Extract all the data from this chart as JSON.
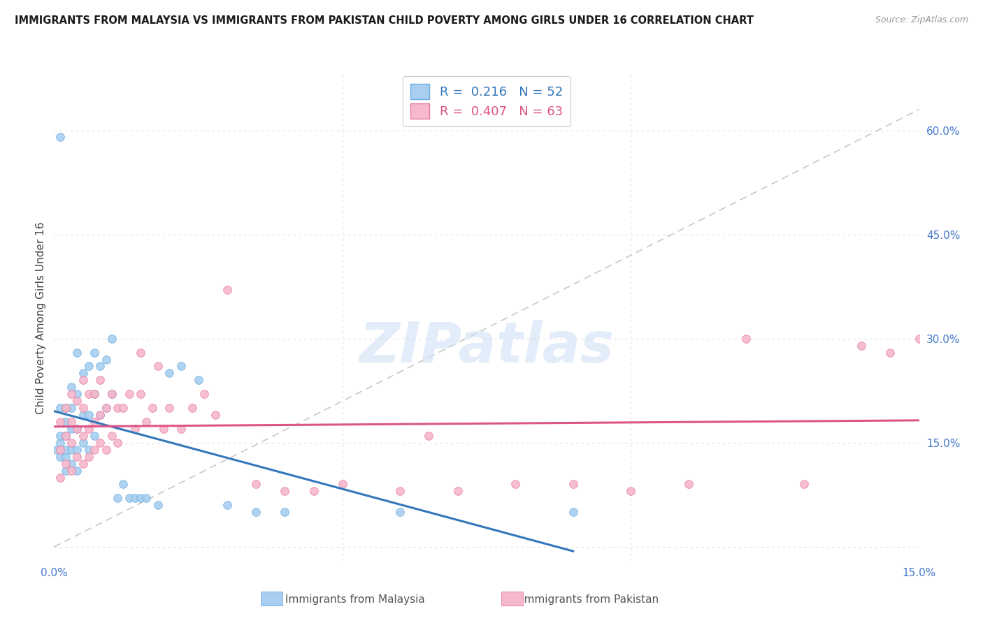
{
  "title": "IMMIGRANTS FROM MALAYSIA VS IMMIGRANTS FROM PAKISTAN CHILD POVERTY AMONG GIRLS UNDER 16 CORRELATION CHART",
  "source": "Source: ZipAtlas.com",
  "ylabel": "Child Poverty Among Girls Under 16",
  "xlim": [
    0.0,
    0.15
  ],
  "ylim": [
    -0.02,
    0.68
  ],
  "yticks_right": [
    0.0,
    0.15,
    0.3,
    0.45,
    0.6
  ],
  "R_malaysia": 0.216,
  "N_malaysia": 52,
  "R_pakistan": 0.407,
  "N_pakistan": 63,
  "color_malaysia": "#a8cff0",
  "color_pakistan": "#f5b8cc",
  "edge_malaysia": "#6aaee0",
  "edge_pakistan": "#e87aa0",
  "line_malaysia": "#3377bb",
  "line_pakistan": "#dd5588",
  "line_ref_color": "#bbbbbb",
  "watermark": "ZIPatlas",
  "background_color": "#ffffff",
  "grid_color": "#dddddd",
  "malaysia_x": [
    0.0005,
    0.001,
    0.001,
    0.001,
    0.001,
    0.001,
    0.002,
    0.002,
    0.002,
    0.002,
    0.002,
    0.002,
    0.003,
    0.003,
    0.003,
    0.003,
    0.003,
    0.004,
    0.004,
    0.004,
    0.004,
    0.004,
    0.005,
    0.005,
    0.005,
    0.006,
    0.006,
    0.006,
    0.007,
    0.007,
    0.007,
    0.008,
    0.008,
    0.009,
    0.009,
    0.01,
    0.01,
    0.011,
    0.012,
    0.013,
    0.014,
    0.015,
    0.016,
    0.018,
    0.02,
    0.022,
    0.025,
    0.03,
    0.035,
    0.04,
    0.06,
    0.09
  ],
  "malaysia_y": [
    0.14,
    0.13,
    0.15,
    0.16,
    0.2,
    0.59,
    0.11,
    0.13,
    0.14,
    0.16,
    0.18,
    0.2,
    0.12,
    0.14,
    0.17,
    0.2,
    0.23,
    0.11,
    0.14,
    0.17,
    0.22,
    0.28,
    0.15,
    0.19,
    0.25,
    0.14,
    0.19,
    0.26,
    0.16,
    0.22,
    0.28,
    0.19,
    0.26,
    0.2,
    0.27,
    0.22,
    0.3,
    0.07,
    0.09,
    0.07,
    0.07,
    0.07,
    0.07,
    0.06,
    0.25,
    0.26,
    0.24,
    0.06,
    0.05,
    0.05,
    0.05,
    0.05
  ],
  "pakistan_x": [
    0.001,
    0.001,
    0.001,
    0.002,
    0.002,
    0.002,
    0.003,
    0.003,
    0.003,
    0.003,
    0.004,
    0.004,
    0.004,
    0.005,
    0.005,
    0.005,
    0.005,
    0.006,
    0.006,
    0.006,
    0.007,
    0.007,
    0.007,
    0.008,
    0.008,
    0.008,
    0.009,
    0.009,
    0.01,
    0.01,
    0.011,
    0.011,
    0.012,
    0.013,
    0.014,
    0.015,
    0.015,
    0.016,
    0.017,
    0.018,
    0.019,
    0.02,
    0.022,
    0.024,
    0.026,
    0.028,
    0.03,
    0.035,
    0.04,
    0.045,
    0.05,
    0.06,
    0.065,
    0.07,
    0.08,
    0.09,
    0.1,
    0.11,
    0.12,
    0.13,
    0.14,
    0.145,
    0.15
  ],
  "pakistan_y": [
    0.1,
    0.14,
    0.18,
    0.12,
    0.16,
    0.2,
    0.11,
    0.15,
    0.18,
    0.22,
    0.13,
    0.17,
    0.21,
    0.12,
    0.16,
    0.2,
    0.24,
    0.13,
    0.17,
    0.22,
    0.14,
    0.18,
    0.22,
    0.15,
    0.19,
    0.24,
    0.14,
    0.2,
    0.16,
    0.22,
    0.15,
    0.2,
    0.2,
    0.22,
    0.17,
    0.22,
    0.28,
    0.18,
    0.2,
    0.26,
    0.17,
    0.2,
    0.17,
    0.2,
    0.22,
    0.19,
    0.37,
    0.09,
    0.08,
    0.08,
    0.09,
    0.08,
    0.16,
    0.08,
    0.09,
    0.09,
    0.08,
    0.09,
    0.3,
    0.09,
    0.29,
    0.28,
    0.3
  ]
}
